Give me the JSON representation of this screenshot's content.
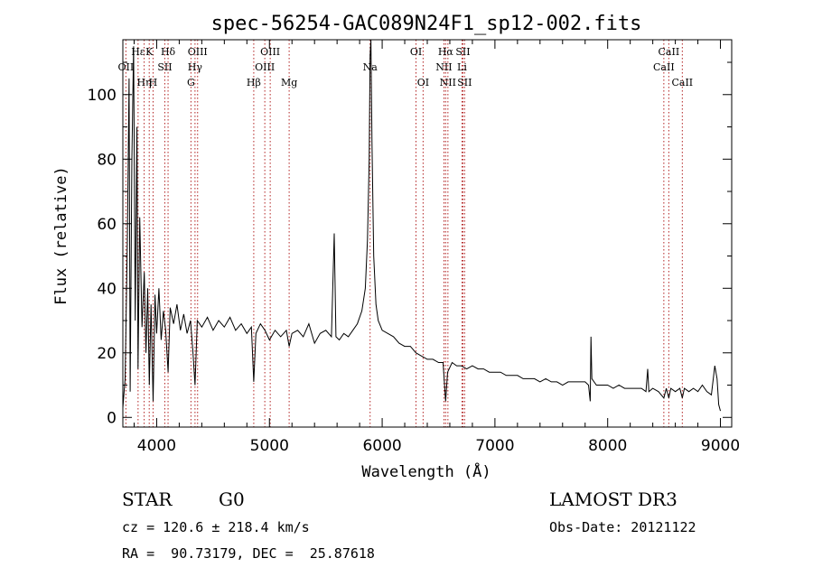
{
  "chart_data": {
    "type": "line",
    "title": "spec-56254-GAC089N24F1_sp12-002.fits",
    "xlabel": "Wavelength (Å)",
    "ylabel": "Flux (relative)",
    "xlim": [
      3700,
      9100
    ],
    "ylim": [
      -3,
      117
    ],
    "x_ticks": [
      4000,
      5000,
      6000,
      7000,
      8000,
      9000
    ],
    "y_ticks": [
      0,
      20,
      40,
      60,
      80,
      100
    ],
    "series": [
      {
        "name": "spectrum",
        "points": [
          [
            3700,
            3
          ],
          [
            3720,
            12
          ],
          [
            3740,
            55
          ],
          [
            3755,
            105
          ],
          [
            3765,
            8
          ],
          [
            3780,
            80
          ],
          [
            3795,
            115
          ],
          [
            3810,
            30
          ],
          [
            3825,
            90
          ],
          [
            3835,
            15
          ],
          [
            3850,
            62
          ],
          [
            3870,
            28
          ],
          [
            3890,
            45
          ],
          [
            3905,
            20
          ],
          [
            3920,
            40
          ],
          [
            3935,
            10
          ],
          [
            3950,
            35
          ],
          [
            3968,
            5
          ],
          [
            3985,
            38
          ],
          [
            4000,
            26
          ],
          [
            4020,
            40
          ],
          [
            4040,
            24
          ],
          [
            4060,
            33
          ],
          [
            4080,
            27
          ],
          [
            4101,
            14
          ],
          [
            4120,
            34
          ],
          [
            4150,
            29
          ],
          [
            4180,
            35
          ],
          [
            4210,
            27
          ],
          [
            4240,
            32
          ],
          [
            4270,
            26
          ],
          [
            4300,
            30
          ],
          [
            4320,
            21
          ],
          [
            4340,
            10
          ],
          [
            4360,
            30
          ],
          [
            4400,
            28
          ],
          [
            4450,
            31
          ],
          [
            4500,
            27
          ],
          [
            4550,
            30
          ],
          [
            4600,
            28
          ],
          [
            4650,
            31
          ],
          [
            4700,
            27
          ],
          [
            4750,
            29
          ],
          [
            4800,
            26
          ],
          [
            4840,
            28
          ],
          [
            4861,
            11
          ],
          [
            4880,
            26
          ],
          [
            4920,
            29
          ],
          [
            4960,
            27
          ],
          [
            5000,
            24
          ],
          [
            5050,
            27
          ],
          [
            5100,
            25
          ],
          [
            5150,
            27
          ],
          [
            5175,
            22
          ],
          [
            5200,
            26
          ],
          [
            5250,
            27
          ],
          [
            5300,
            25
          ],
          [
            5350,
            29
          ],
          [
            5400,
            23
          ],
          [
            5450,
            26
          ],
          [
            5500,
            27
          ],
          [
            5550,
            25
          ],
          [
            5575,
            57
          ],
          [
            5590,
            25
          ],
          [
            5620,
            24
          ],
          [
            5660,
            26
          ],
          [
            5700,
            25
          ],
          [
            5740,
            27
          ],
          [
            5780,
            29
          ],
          [
            5820,
            33
          ],
          [
            5850,
            40
          ],
          [
            5870,
            55
          ],
          [
            5885,
            80
          ],
          [
            5893,
            112
          ],
          [
            5900,
            117
          ],
          [
            5910,
            85
          ],
          [
            5925,
            50
          ],
          [
            5945,
            35
          ],
          [
            5965,
            30
          ],
          [
            6000,
            27
          ],
          [
            6050,
            26
          ],
          [
            6100,
            25
          ],
          [
            6150,
            23
          ],
          [
            6200,
            22
          ],
          [
            6250,
            22
          ],
          [
            6300,
            20
          ],
          [
            6350,
            19
          ],
          [
            6400,
            18
          ],
          [
            6450,
            18
          ],
          [
            6500,
            17
          ],
          [
            6540,
            17
          ],
          [
            6563,
            5
          ],
          [
            6580,
            14
          ],
          [
            6620,
            17
          ],
          [
            6660,
            16
          ],
          [
            6700,
            16
          ],
          [
            6750,
            15
          ],
          [
            6800,
            16
          ],
          [
            6850,
            15
          ],
          [
            6900,
            15
          ],
          [
            6950,
            14
          ],
          [
            7000,
            14
          ],
          [
            7050,
            14
          ],
          [
            7100,
            13
          ],
          [
            7150,
            13
          ],
          [
            7200,
            13
          ],
          [
            7250,
            12
          ],
          [
            7300,
            12
          ],
          [
            7350,
            12
          ],
          [
            7400,
            11
          ],
          [
            7450,
            12
          ],
          [
            7500,
            11
          ],
          [
            7550,
            11
          ],
          [
            7600,
            10
          ],
          [
            7650,
            11
          ],
          [
            7700,
            11
          ],
          [
            7750,
            11
          ],
          [
            7800,
            11
          ],
          [
            7830,
            10
          ],
          [
            7845,
            5
          ],
          [
            7852,
            25
          ],
          [
            7860,
            12
          ],
          [
            7900,
            10
          ],
          [
            7950,
            10
          ],
          [
            8000,
            10
          ],
          [
            8050,
            9
          ],
          [
            8100,
            10
          ],
          [
            8150,
            9
          ],
          [
            8200,
            9
          ],
          [
            8250,
            9
          ],
          [
            8300,
            9
          ],
          [
            8340,
            8
          ],
          [
            8355,
            15
          ],
          [
            8365,
            8
          ],
          [
            8400,
            9
          ],
          [
            8450,
            8
          ],
          [
            8498,
            6
          ],
          [
            8520,
            9
          ],
          [
            8542,
            6
          ],
          [
            8560,
            9
          ],
          [
            8600,
            8
          ],
          [
            8640,
            9
          ],
          [
            8662,
            6
          ],
          [
            8680,
            9
          ],
          [
            8720,
            8
          ],
          [
            8760,
            9
          ],
          [
            8800,
            8
          ],
          [
            8840,
            10
          ],
          [
            8880,
            8
          ],
          [
            8920,
            7
          ],
          [
            8950,
            16
          ],
          [
            8970,
            12
          ],
          [
            8985,
            4
          ],
          [
            9000,
            2
          ]
        ]
      }
    ],
    "lines": [
      {
        "label": "Hε",
        "x": 3835,
        "row": 1
      },
      {
        "label": "OII",
        "x": 3727,
        "row": 2
      },
      {
        "label": "Hη",
        "x": 3889,
        "row": 3
      },
      {
        "label": "K",
        "x": 3934,
        "row": 1
      },
      {
        "label": "H",
        "x": 3968,
        "row": 3
      },
      {
        "label": "Hδ",
        "x": 4101,
        "row": 1
      },
      {
        "label": "SII",
        "x": 4072,
        "row": 2
      },
      {
        "label": "OIII",
        "x": 4363,
        "row": 1
      },
      {
        "label": "Hγ",
        "x": 4340,
        "row": 2
      },
      {
        "label": "G",
        "x": 4304,
        "row": 3
      },
      {
        "label": "Hβ",
        "x": 4861,
        "row": 3
      },
      {
        "label": "OIII",
        "x": 5007,
        "row": 1
      },
      {
        "label": "OIII",
        "x": 4959,
        "row": 2
      },
      {
        "label": "Mg",
        "x": 5175,
        "row": 3
      },
      {
        "label": "Na",
        "x": 5893,
        "row": 2
      },
      {
        "label": "OI",
        "x": 6300,
        "row": 1
      },
      {
        "label": "OI",
        "x": 6363,
        "row": 3
      },
      {
        "label": "Hα",
        "x": 6563,
        "row": 1
      },
      {
        "label": "NII",
        "x": 6548,
        "row": 2
      },
      {
        "label": "NII",
        "x": 6583,
        "row": 3
      },
      {
        "label": "SII",
        "x": 6716,
        "row": 1
      },
      {
        "label": "Li",
        "x": 6708,
        "row": 2
      },
      {
        "label": "SII",
        "x": 6731,
        "row": 3
      },
      {
        "label": "CaII",
        "x": 8542,
        "row": 1
      },
      {
        "label": "CaII",
        "x": 8498,
        "row": 2
      },
      {
        "label": "CaII",
        "x": 8662,
        "row": 3
      }
    ]
  },
  "info": {
    "class_label": "STAR",
    "subclass": "G0",
    "survey": "LAMOST DR3",
    "cz": "cz = 120.6 ± 218.4 km/s",
    "obs_date": "Obs-Date: 20121122",
    "coords": "RA =  90.73179, DEC =  25.87618"
  }
}
